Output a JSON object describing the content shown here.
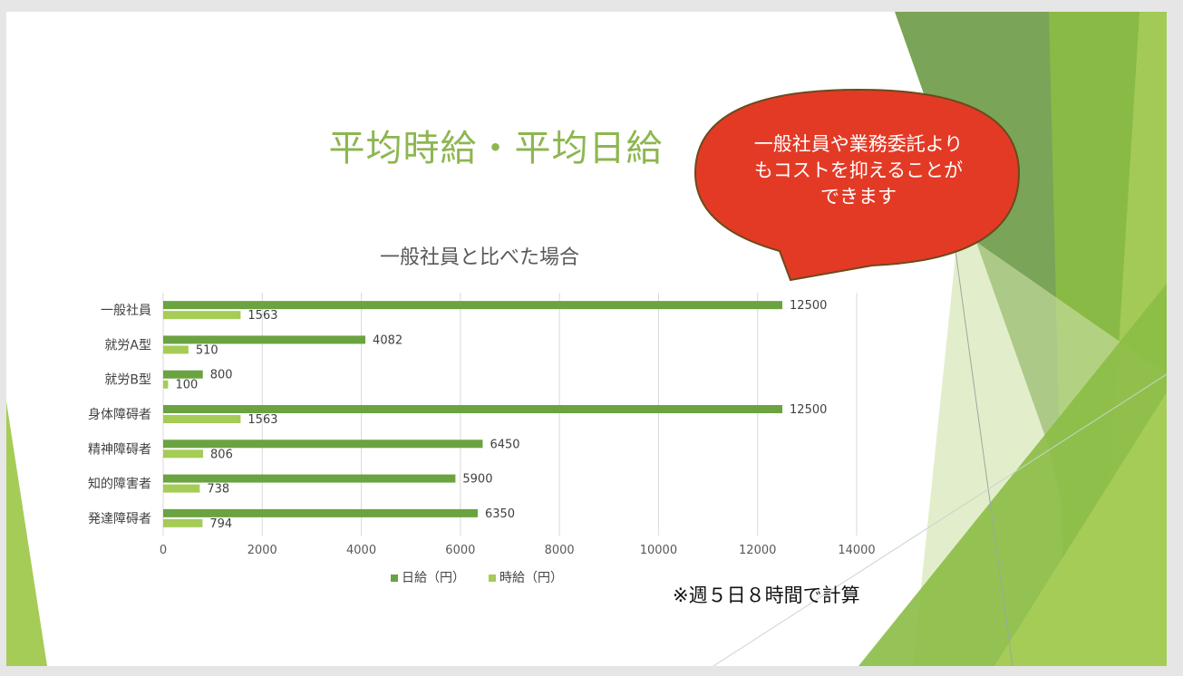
{
  "slide": {
    "title": "平均時給・平均日給",
    "callout": "一般社員や業務委託よりもコストを抑えることができます",
    "note": "※週５日８時間で計算",
    "colors": {
      "accent": "#8db650",
      "callout": "#e33a26",
      "series_day": "#6aa340",
      "series_hour": "#a5cc57"
    }
  },
  "chart_data": {
    "type": "bar",
    "orientation": "horizontal",
    "title": "一般社員と比べた場合",
    "categories": [
      "一般社員",
      "就労A型",
      "就労B型",
      "身体障碍者",
      "精神障碍者",
      "知的障害者",
      "発達障碍者"
    ],
    "series": [
      {
        "name": "日給（円）",
        "values": [
          12500,
          4082,
          800,
          12500,
          6450,
          5900,
          6350
        ]
      },
      {
        "name": "時給（円）",
        "values": [
          1563,
          510,
          100,
          1563,
          806,
          738,
          794
        ]
      }
    ],
    "x_ticks": [
      0,
      2000,
      4000,
      6000,
      8000,
      10000,
      12000,
      14000
    ],
    "xlim": [
      0,
      14000
    ],
    "grid": true,
    "legend": "bottom"
  }
}
